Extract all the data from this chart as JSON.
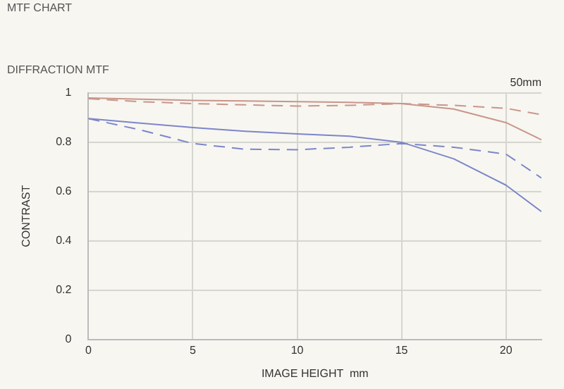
{
  "chart_data": {
    "type": "line",
    "title": "MTF CHART",
    "subtitle": "DIFFRACTION MTF",
    "xlabel": "IMAGE HEIGHT  mm",
    "ylabel": "CONTRAST",
    "annotations": [
      "50mm"
    ],
    "x": [
      0,
      2.5,
      5,
      7.5,
      10,
      12.5,
      15,
      17.5,
      20,
      21.7
    ],
    "series": [
      {
        "color": "#c9958a",
        "line_style": "solid",
        "values": [
          0.98,
          0.975,
          0.97,
          0.968,
          0.965,
          0.962,
          0.957,
          0.935,
          0.88,
          0.81
        ]
      },
      {
        "color": "#c9958a",
        "line_style": "dashed",
        "values": [
          0.977,
          0.965,
          0.957,
          0.952,
          0.947,
          0.95,
          0.957,
          0.95,
          0.938,
          0.912
        ]
      },
      {
        "color": "#7c86c8",
        "line_style": "solid",
        "values": [
          0.896,
          0.878,
          0.86,
          0.845,
          0.834,
          0.825,
          0.8,
          0.733,
          0.626,
          0.519
        ]
      },
      {
        "color": "#7c86c8",
        "line_style": "dashed",
        "values": [
          0.896,
          0.85,
          0.795,
          0.772,
          0.77,
          0.78,
          0.795,
          0.78,
          0.752,
          0.655
        ]
      }
    ],
    "xlim": [
      0,
      21.7
    ],
    "xticks": [
      0,
      5,
      10,
      15,
      20
    ],
    "ylim": [
      0,
      1
    ],
    "yticks": [
      0,
      0.2,
      0.4,
      0.6,
      0.8,
      1
    ],
    "grid": true,
    "legend": false,
    "marker": "none"
  }
}
